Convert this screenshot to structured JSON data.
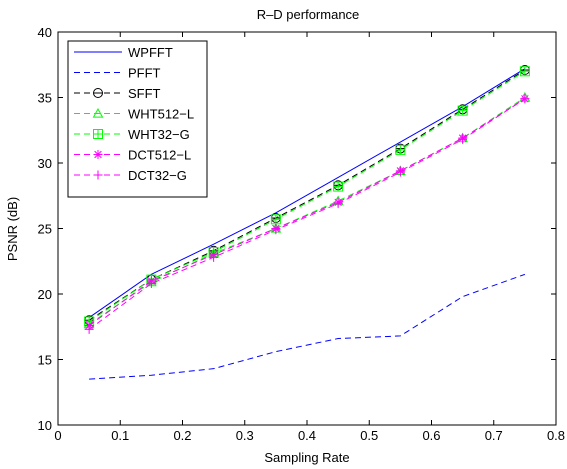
{
  "chart_data": {
    "type": "line",
    "title": "R–D performance",
    "xlabel": "Sampling Rate",
    "ylabel": "PSNR (dB)",
    "xlim": [
      0,
      0.8
    ],
    "ylim": [
      10,
      40
    ],
    "xticks": [
      0,
      0.1,
      0.2,
      0.3,
      0.4,
      0.5,
      0.6,
      0.7,
      0.8
    ],
    "xtick_labels": [
      "0",
      "0.1",
      "0.2",
      "0.3",
      "0.4",
      "0.5",
      "0.6",
      "0.7",
      "0.8"
    ],
    "yticks": [
      10,
      15,
      20,
      25,
      30,
      35,
      40
    ],
    "ytick_labels": [
      "10",
      "15",
      "20",
      "25",
      "30",
      "35",
      "40"
    ],
    "grid": false,
    "legend_position": "top-left",
    "x": [
      0.05,
      0.15,
      0.25,
      0.35,
      0.45,
      0.55,
      0.65,
      0.75
    ],
    "series": [
      {
        "name": "WPFFT",
        "color": "#0000ff",
        "dash": "solid",
        "marker": "none",
        "values": [
          18.2,
          21.5,
          23.8,
          26.2,
          28.9,
          31.6,
          34.3,
          37.2
        ]
      },
      {
        "name": "PFFT",
        "color": "#0000ff",
        "dash": "dashed",
        "marker": "none",
        "values": [
          13.5,
          13.8,
          14.3,
          15.6,
          16.6,
          16.8,
          19.8,
          21.5
        ]
      },
      {
        "name": "SFFT",
        "color": "#000000",
        "dash": "dashed",
        "marker": "circle-minus",
        "values": [
          18.0,
          21.1,
          23.3,
          25.8,
          28.3,
          31.1,
          34.1,
          37.1
        ]
      },
      {
        "name": "WHT512−L",
        "color": "#00ff00",
        "dash": "dashed",
        "marker": "triangle",
        "values": [
          17.7,
          20.9,
          23.1,
          25.0,
          27.1,
          29.4,
          31.9,
          35.0
        ]
      },
      {
        "name": "WHT32−G",
        "color": "#00ff00",
        "dash": "dashed",
        "marker": "square-plus",
        "values": [
          17.9,
          21.1,
          23.2,
          25.7,
          28.2,
          31.0,
          34.0,
          37.0
        ]
      },
      {
        "name": "DCT512−L",
        "color": "#ff00ff",
        "dash": "dashed",
        "marker": "asterisk",
        "values": [
          17.6,
          21.0,
          23.0,
          25.0,
          27.0,
          29.4,
          31.9,
          34.9
        ]
      },
      {
        "name": "DCT32−G",
        "color": "#ff00ff",
        "dash": "dashed",
        "marker": "plus",
        "values": [
          17.3,
          20.8,
          22.8,
          24.9,
          26.9,
          29.3,
          31.8,
          34.9
        ]
      }
    ]
  }
}
